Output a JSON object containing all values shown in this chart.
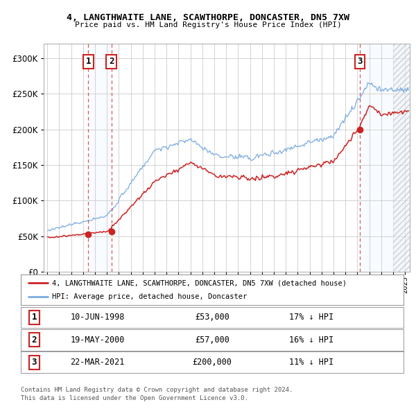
{
  "title1": "4, LANGTHWAITE LANE, SCAWTHORPE, DONCASTER, DN5 7XW",
  "title2": "Price paid vs. HM Land Registry's House Price Index (HPI)",
  "sale_prices": [
    53000,
    57000,
    200000
  ],
  "sale_labels": [
    "1",
    "2",
    "3"
  ],
  "sale_date_strs": [
    "10-JUN-1998",
    "19-MAY-2000",
    "22-MAR-2021"
  ],
  "sale_price_strs": [
    "£53,000",
    "£57,000",
    "£200,000"
  ],
  "sale_hpi_strs": [
    "17% ↓ HPI",
    "16% ↓ HPI",
    "11% ↓ HPI"
  ],
  "sale_years": [
    1998.44,
    2000.37,
    2021.22
  ],
  "red_line_color": "#cc2222",
  "blue_line_color": "#7aabe0",
  "background_color": "#ffffff",
  "grid_color": "#cccccc",
  "shade_color": "#ddeeff",
  "legend_label_red": "4, LANGTHWAITE LANE, SCAWTHORPE, DONCASTER, DN5 7XW (detached house)",
  "legend_label_blue": "HPI: Average price, detached house, Doncaster",
  "footnote1": "Contains HM Land Registry data © Crown copyright and database right 2024.",
  "footnote2": "This data is licensed under the Open Government Licence v3.0.",
  "ylim": [
    0,
    320000
  ],
  "xlim_start": 1994.7,
  "xlim_end": 2025.4,
  "hatch_start": 2024.0
}
